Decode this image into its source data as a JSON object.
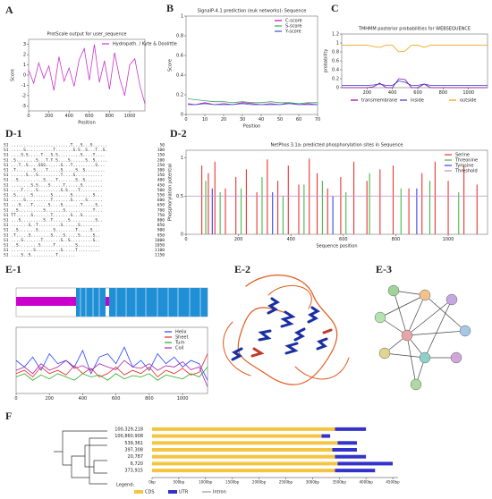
{
  "chart_data": [
    {
      "panel": "A",
      "type": "line",
      "title": "ProtScale output for user_sequence",
      "xlabel": "Position",
      "ylabel": "Score",
      "x": [
        0,
        50,
        100,
        150,
        200,
        250,
        300,
        350,
        400,
        450,
        500,
        550,
        600,
        650,
        700,
        750,
        800,
        850,
        900,
        950,
        1000,
        1050,
        1100,
        1150
      ],
      "series": [
        {
          "name": "Hydropath. / Kyte & Doolittle",
          "color": "#cc33cc",
          "values": [
            0.5,
            -0.8,
            1.2,
            -0.3,
            0.9,
            -1.5,
            1.8,
            -0.6,
            0.7,
            -1.1,
            1.5,
            2.6,
            -0.5,
            3.0,
            -0.7,
            1.4,
            -1.4,
            2.2,
            -0.3,
            -2.0,
            1.0,
            1.6,
            -1.0,
            -2.8
          ]
        }
      ],
      "xlim": [
        0,
        1150
      ],
      "xticks": [
        0,
        200,
        400,
        600,
        800,
        1000
      ],
      "ylim": [
        -3.5,
        3.5
      ],
      "yticks": [
        -3,
        -2,
        -1,
        0,
        1,
        2,
        3
      ],
      "legend": "upper right"
    },
    {
      "panel": "B",
      "type": "line",
      "title": "SignalP-4.1 prediction (euk networks): Sequence",
      "xlabel": "Position",
      "ylabel": "Score",
      "x": [
        1,
        5,
        10,
        15,
        20,
        25,
        30,
        35,
        40,
        45,
        50,
        55,
        60,
        65,
        70
      ],
      "series": [
        {
          "name": "C-score",
          "color": "#cc00cc",
          "values": [
            0.11,
            0.1,
            0.12,
            0.1,
            0.11,
            0.1,
            0.12,
            0.11,
            0.1,
            0.11,
            0.1,
            0.12,
            0.1,
            0.11,
            0.1
          ]
        },
        {
          "name": "S-score",
          "color": "#33aa55",
          "values": [
            0.16,
            0.15,
            0.14,
            0.13,
            0.13,
            0.12,
            0.13,
            0.12,
            0.12,
            0.13,
            0.12,
            0.12,
            0.11,
            0.12,
            0.12
          ]
        },
        {
          "name": "Y-score",
          "color": "#3355cc",
          "values": [
            0.1,
            0.1,
            0.11,
            0.1,
            0.1,
            0.1,
            0.11,
            0.1,
            0.1,
            0.1,
            0.1,
            0.11,
            0.1,
            0.1,
            0.1
          ]
        }
      ],
      "xlim": [
        0,
        70
      ],
      "xticks": [
        0,
        10,
        20,
        30,
        40,
        50,
        60,
        70
      ],
      "ylim": [
        0,
        1
      ],
      "yticks": [
        0,
        0.2,
        0.4,
        0.6,
        0.8,
        1
      ],
      "legend": "upper right"
    },
    {
      "panel": "C",
      "type": "line",
      "title": "TMHMM posterior probabilities for WEBSEQUENCE",
      "ylabel": "probability",
      "x": [
        0,
        50,
        100,
        150,
        200,
        250,
        300,
        350,
        400,
        450,
        500,
        550,
        600,
        650,
        700,
        750,
        800,
        850,
        900,
        950,
        1000,
        1050,
        1100,
        1150
      ],
      "series": [
        {
          "name": "transmembrane",
          "color": "#8800aa",
          "values": [
            0,
            0,
            0,
            0,
            0,
            0.02,
            0.1,
            0,
            0,
            0.2,
            0.18,
            0,
            0,
            0.08,
            0,
            0,
            0,
            0,
            0,
            0,
            0,
            0,
            0,
            0
          ]
        },
        {
          "name": "inside",
          "color": "#3333cc",
          "values": [
            0.05,
            0.05,
            0.05,
            0.05,
            0.05,
            0.06,
            0.08,
            0.05,
            0.05,
            0.15,
            0.12,
            0.05,
            0.05,
            0.08,
            0.05,
            0.05,
            0.05,
            0.05,
            0.05,
            0.05,
            0.05,
            0.05,
            0.05,
            0.05
          ]
        },
        {
          "name": "outside",
          "color": "#ee9900",
          "values": [
            0.95,
            0.95,
            0.95,
            0.95,
            0.95,
            0.92,
            0.9,
            0.95,
            0.95,
            0.8,
            0.82,
            0.95,
            0.95,
            0.9,
            0.95,
            0.95,
            0.95,
            0.95,
            0.95,
            0.95,
            0.95,
            0.95,
            0.95,
            0.95
          ]
        }
      ],
      "xlim": [
        0,
        1150
      ],
      "xticks": [
        200,
        400,
        600,
        800,
        1000
      ],
      "ylim": [
        0,
        1.2
      ],
      "yticks": [
        0,
        0.2,
        0.4,
        0.6,
        0.8,
        1,
        1.2
      ],
      "legend": "below"
    },
    {
      "panel": "D-2",
      "type": "bar",
      "title": "NetPhos 3.1a: predicted phosphorylation sites in Sequence",
      "xlabel": "Sequence position",
      "ylabel": "Phosphorylation potential",
      "series": [
        {
          "name": "Serine",
          "color": "#ee3333",
          "x": [
            60,
            85,
            110,
            150,
            190,
            230,
            270,
            310,
            350,
            390,
            430,
            470,
            500,
            540,
            590,
            640,
            690,
            740,
            790,
            850,
            900,
            950,
            1000,
            1060,
            1110
          ],
          "values": [
            0.9,
            0.8,
            0.95,
            0.6,
            0.75,
            0.85,
            0.55,
            0.98,
            0.7,
            0.9,
            0.65,
            0.99,
            0.8,
            0.6,
            0.75,
            0.95,
            0.7,
            0.85,
            0.9,
            0.6,
            0.8,
            0.95,
            0.7,
            0.9,
            0.65
          ]
        },
        {
          "name": "Threonine",
          "color": "#44bb44",
          "x": [
            75,
            130,
            210,
            290,
            370,
            450,
            520,
            610,
            700,
            820,
            930,
            1040
          ],
          "values": [
            0.7,
            0.55,
            0.6,
            0.75,
            0.5,
            0.65,
            0.7,
            0.55,
            0.8,
            0.6,
            0.7,
            0.55
          ]
        },
        {
          "name": "Tyrosine",
          "color": "#3344ee",
          "x": [
            100,
            330,
            560,
            880
          ],
          "values": [
            0.6,
            0.55,
            0.5,
            0.6
          ]
        },
        {
          "name": "Threshold",
          "color": "#cc88cc",
          "values": [
            0.5
          ]
        }
      ],
      "xlim": [
        0,
        1150
      ],
      "xticks": [
        0,
        200,
        400,
        600,
        800,
        1000
      ],
      "ylim": [
        0,
        1.1
      ],
      "yticks": [
        0,
        0.5,
        1
      ],
      "legend": "upper right"
    },
    {
      "panel": "E-1",
      "type": "line",
      "x": [
        0,
        50,
        100,
        150,
        200,
        250,
        300,
        350,
        400,
        450,
        500,
        550,
        600,
        650,
        700,
        750,
        800,
        850,
        900,
        950,
        1000,
        1050,
        1100,
        1150
      ],
      "series": [
        {
          "name": "Helix",
          "color": "#2244ff",
          "values": [
            0.5,
            0.4,
            0.55,
            0.35,
            0.6,
            0.45,
            0.5,
            0.4,
            0.65,
            0.3,
            0.55,
            0.6,
            0.45,
            0.7,
            0.4,
            0.5,
            0.35,
            0.6,
            0.45,
            0.55,
            0.4,
            0.5,
            0.45,
            0.2
          ]
        },
        {
          "name": "Sheet",
          "color": "#ee2222",
          "values": [
            0.3,
            0.35,
            0.25,
            0.4,
            0.3,
            0.35,
            0.28,
            0.42,
            0.3,
            0.38,
            0.25,
            0.3,
            0.4,
            0.28,
            0.35,
            0.3,
            0.4,
            0.25,
            0.35,
            0.3,
            0.38,
            0.28,
            0.32,
            0.6
          ]
        },
        {
          "name": "Turn",
          "color": "#22aa22",
          "values": [
            0.25,
            0.3,
            0.2,
            0.28,
            0.22,
            0.3,
            0.25,
            0.2,
            0.3,
            0.25,
            0.28,
            0.2,
            0.3,
            0.22,
            0.27,
            0.25,
            0.3,
            0.2,
            0.28,
            0.25,
            0.22,
            0.3,
            0.25,
            0.4
          ]
        },
        {
          "name": "Coil",
          "color": "#aa22aa",
          "values": [
            0.35,
            0.4,
            0.3,
            0.45,
            0.35,
            0.4,
            0.5,
            0.38,
            0.42,
            0.35,
            0.45,
            0.4,
            0.36,
            0.5,
            0.4,
            0.38,
            0.45,
            0.35,
            0.42,
            0.4,
            0.48,
            0.36,
            0.4,
            0.1
          ]
        }
      ],
      "xlim": [
        0,
        1150
      ],
      "xticks": [
        0,
        200,
        400,
        600,
        800,
        1000
      ],
      "ylim": [
        0,
        1
      ],
      "legend": "upper right"
    },
    {
      "panel": "F",
      "type": "bar",
      "orientation": "horizontal",
      "categories": [
        "100,329,218",
        "100,860,908",
        "539,361",
        "397,308",
        "20,787",
        "6,720",
        "373,915"
      ],
      "series": [
        {
          "name": "CDS",
          "color": "#f5c542",
          "values": [
            3420,
            3170,
            3470,
            3370,
            3420,
            3470,
            3420
          ]
        },
        {
          "name": "UTR",
          "color": "#3333cc",
          "values": [
            580,
            160,
            360,
            460,
            580,
            1030,
            750
          ]
        },
        {
          "name": "Intron",
          "color": "#666666",
          "values": [
            null,
            null,
            null,
            null,
            null,
            null,
            null
          ]
        }
      ],
      "legend_title": "Legend:",
      "xlim": [
        0,
        4600
      ],
      "xticks": [
        {
          "value": 0,
          "label": "0bp"
        },
        {
          "value": 500,
          "label": "500bp"
        },
        {
          "value": 1000,
          "label": "1000bp"
        },
        {
          "value": 1500,
          "label": "1500bp"
        },
        {
          "value": 2000,
          "label": "2000bp"
        },
        {
          "value": 2500,
          "label": "2500bp"
        },
        {
          "value": 3000,
          "label": "3000bp"
        },
        {
          "value": 3500,
          "label": "3500bp"
        },
        {
          "value": 4000,
          "label": "4000bp"
        },
        {
          "value": 4500,
          "label": "4500bp"
        }
      ]
    }
  ],
  "alignment": {
    "panel": "D-1",
    "rows": [
      {
        "seq": "S1 ........................T...S...S......",
        "pos": 50
      },
      {
        "seq": "S1 .....S...........T.......S.S..S...T..S.",
        "pos": 100
      },
      {
        "seq": "S1 ....S.S.....T...S.S.........S....T....",
        "pos": 150
      },
      {
        "seq": "S1 .S........S...T.T.S....S......S..S.....",
        "pos": 200
      },
      {
        "seq": "S1 ...T..S....SSS......S...T.........S...",
        "pos": 250
      },
      {
        "seq": "S1 .T.......S....T.....S.....S..S........",
        "pos": 300
      },
      {
        "seq": "S1 ......S...S.........T....S...........",
        "pos": 350
      },
      {
        "seq": "S1 ..S..........S....T.......S..S.......",
        "pos": 400
      },
      {
        "seq": "S1 ........S.S....S.....T......S........",
        "pos": 450
      },
      {
        "seq": "S1 ....T.....S.........S.S....T.........",
        "pos": 500
      },
      {
        "seq": "S1 .S......S.......S.......S........S...",
        "pos": 550
      },
      {
        "seq": "S1 .....S..........T.......S.....S......",
        "pos": 600
      },
      {
        "seq": "S1 ...S....T......S....S.......T.....S..",
        "pos": 650
      },
      {
        "seq": "S1 ..S..........S.......S...........T...",
        "pos": 700
      },
      {
        "seq": "S1 TT......S.......T.......S...S.......",
        "pos": 750
      },
      {
        "seq": "S1 ...S.........S..T......S..........S..",
        "pos": 800
      },
      {
        "seq": "S1 .......S..T.........S......S........",
        "pos": 850
      },
      {
        "seq": "S1 ..S.......S......S........T.....S...",
        "pos": 900
      },
      {
        "seq": "S1 .T.....S........S....S.....S.....S..",
        "pos": 950
      },
      {
        "seq": "S1 ....S.......T.......S..S.........S..",
        "pos": 1000
      },
      {
        "seq": "S1 ..S........S.....T........S.........",
        "pos": 1050
      },
      {
        "seq": "S1 .........S..........S.....T.........",
        "pos": 1100
      },
      {
        "seq": "S1 ....S..S..........T.......",
        "pos": 1150
      }
    ]
  },
  "images": [
    {
      "panel": "E-2"
    },
    {
      "panel": "E-3"
    }
  ]
}
